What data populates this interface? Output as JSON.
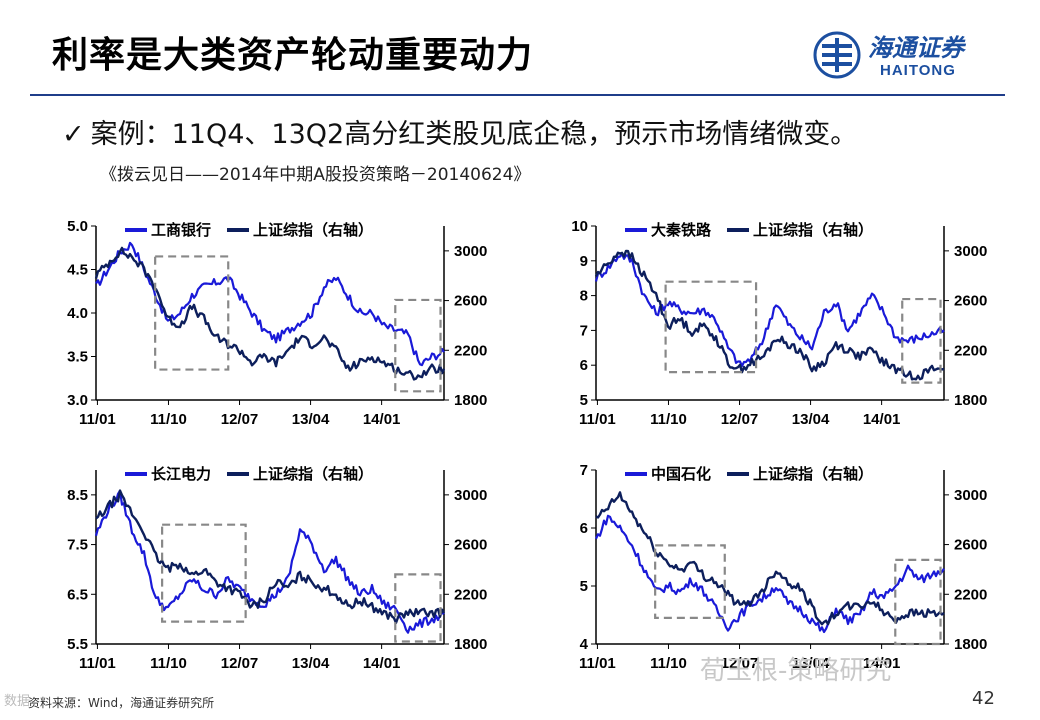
{
  "slide": {
    "title": "利率是大类资产轮动重要动力",
    "case_text": "案例：11Q4、13Q2高分红类股见底企稳，预示市场情绪微变。",
    "case_bullet": "✓",
    "source_text": "《拨云见日——2014年中期A股投资策略－20140624》",
    "footnote": "资料来源：Wind，海通证券研究所",
    "page_number": "42",
    "watermark": "荀玉根-策略研究",
    "watermark_left": "数据",
    "logo_cn": "海通证券",
    "logo_en": "HAITONG",
    "colors": {
      "stock": "#1a1ad8",
      "index": "#0d1f5c",
      "rule": "#1f3d8a",
      "box": "#888888"
    }
  },
  "chart_data": [
    {
      "type": "line",
      "title": "",
      "x_ticks": [
        "11/01",
        "11/10",
        "12/07",
        "13/04",
        "14/01"
      ],
      "y_left_ticks": [
        "5.0",
        "4.5",
        "4.0",
        "3.5",
        "3.0"
      ],
      "y_left_range": [
        3.0,
        5.0
      ],
      "y_right_ticks": [
        "3000",
        "2600",
        "2200",
        "1800"
      ],
      "y_right_range": [
        1800,
        3200
      ],
      "series": [
        {
          "name": "工商银行",
          "axis": "left",
          "values": [
            4.3,
            4.5,
            4.7,
            4.8,
            4.5,
            4.2,
            3.9,
            4.0,
            4.2,
            4.3,
            4.35,
            4.4,
            4.2,
            4.0,
            3.8,
            3.7,
            3.8,
            3.9,
            4.0,
            4.3,
            4.4,
            4.2,
            4.0,
            4.0,
            3.85,
            3.8,
            3.75,
            3.4,
            3.5,
            3.55
          ]
        },
        {
          "name": "上证综指（右轴）",
          "axis": "right",
          "values": [
            2800,
            2900,
            3000,
            2950,
            2850,
            2700,
            2450,
            2400,
            2550,
            2450,
            2300,
            2250,
            2200,
            2100,
            2150,
            2100,
            2200,
            2300,
            2250,
            2300,
            2200,
            2050,
            2100,
            2150,
            2100,
            2050,
            2000,
            2000,
            2050,
            2050
          ]
        }
      ],
      "highlight_boxes": [
        {
          "x_from": 0.17,
          "x_to": 0.38,
          "y_from": 3.35,
          "y_to": 4.65
        },
        {
          "x_from": 0.86,
          "x_to": 0.99,
          "y_from": 3.1,
          "y_to": 4.15
        }
      ]
    },
    {
      "type": "line",
      "title": "",
      "x_ticks": [
        "11/01",
        "11/10",
        "12/07",
        "13/04",
        "14/01"
      ],
      "y_left_ticks": [
        "10",
        "9",
        "8",
        "7",
        "6",
        "5"
      ],
      "y_left_range": [
        5,
        10
      ],
      "y_right_ticks": [
        "3000",
        "2600",
        "2200",
        "1800"
      ],
      "y_right_range": [
        1800,
        3200
      ],
      "series": [
        {
          "name": "大秦铁路",
          "axis": "left",
          "values": [
            8.5,
            8.8,
            9.2,
            9.0,
            8.0,
            7.5,
            7.8,
            7.6,
            7.5,
            7.6,
            7.3,
            6.5,
            6.0,
            6.2,
            6.8,
            7.8,
            7.2,
            6.8,
            6.5,
            7.5,
            7.8,
            7.0,
            7.5,
            8.0,
            7.5,
            6.8,
            6.7,
            6.8,
            6.9,
            7.0
          ]
        },
        {
          "name": "上证综指（右轴）",
          "axis": "right",
          "values": [
            2800,
            2900,
            3000,
            2950,
            2800,
            2650,
            2400,
            2450,
            2350,
            2400,
            2300,
            2100,
            2050,
            2100,
            2150,
            2300,
            2250,
            2200,
            2050,
            2100,
            2250,
            2200,
            2150,
            2200,
            2100,
            2050,
            2000,
            2000,
            2050,
            2050
          ]
        }
      ],
      "highlight_boxes": [
        {
          "x_from": 0.2,
          "x_to": 0.46,
          "y_from": 5.8,
          "y_to": 8.4
        },
        {
          "x_from": 0.88,
          "x_to": 0.99,
          "y_from": 5.5,
          "y_to": 7.9
        }
      ]
    },
    {
      "type": "line",
      "title": "",
      "x_ticks": [
        "11/01",
        "11/10",
        "12/07",
        "13/04",
        "14/01"
      ],
      "y_left_ticks": [
        "8.5",
        "7.5",
        "6.5",
        "5.5"
      ],
      "y_left_range": [
        5.5,
        9.0
      ],
      "y_right_ticks": [
        "3000",
        "2600",
        "2200",
        "1800"
      ],
      "y_right_range": [
        1800,
        3200
      ],
      "series": [
        {
          "name": "长江电力",
          "axis": "left",
          "values": [
            7.7,
            8.2,
            8.5,
            7.8,
            7.3,
            6.4,
            6.2,
            6.5,
            6.8,
            6.6,
            6.5,
            6.8,
            6.6,
            6.4,
            6.3,
            6.5,
            6.8,
            7.8,
            7.5,
            7.0,
            7.2,
            6.8,
            6.5,
            6.6,
            6.3,
            6.2,
            5.8,
            5.9,
            6.0,
            6.1
          ]
        },
        {
          "name": "上证综指（右轴）",
          "axis": "right",
          "values": [
            2800,
            2900,
            3000,
            2850,
            2700,
            2500,
            2400,
            2450,
            2350,
            2400,
            2300,
            2250,
            2200,
            2100,
            2150,
            2300,
            2250,
            2350,
            2300,
            2250,
            2200,
            2100,
            2150,
            2100,
            2050,
            2000,
            2050,
            2050,
            2050,
            2050
          ]
        }
      ],
      "highlight_boxes": [
        {
          "x_from": 0.19,
          "x_to": 0.43,
          "y_from": 5.95,
          "y_to": 7.9
        },
        {
          "x_from": 0.86,
          "x_to": 0.99,
          "y_from": 5.55,
          "y_to": 6.9
        }
      ]
    },
    {
      "type": "line",
      "title": "",
      "x_ticks": [
        "11/01",
        "11/10",
        "12/07",
        "13/04",
        "14/01"
      ],
      "y_left_ticks": [
        "7",
        "6",
        "5",
        "4"
      ],
      "y_left_range": [
        4,
        7
      ],
      "y_right_ticks": [
        "3000",
        "2600",
        "2200",
        "1800"
      ],
      "y_right_range": [
        1800,
        3200
      ],
      "series": [
        {
          "name": "中国石化",
          "axis": "left",
          "values": [
            5.8,
            6.2,
            6.0,
            5.7,
            5.3,
            4.9,
            5.0,
            4.9,
            5.1,
            4.9,
            4.6,
            4.3,
            4.5,
            4.7,
            4.8,
            5.0,
            4.7,
            4.6,
            4.4,
            4.2,
            4.6,
            4.4,
            4.5,
            4.9,
            4.8,
            5.0,
            5.3,
            5.1,
            5.2,
            5.3
          ]
        },
        {
          "name": "上证综指（右轴）",
          "axis": "right",
          "values": [
            2800,
            2900,
            3000,
            2850,
            2700,
            2550,
            2450,
            2400,
            2450,
            2350,
            2300,
            2200,
            2100,
            2150,
            2250,
            2400,
            2300,
            2250,
            2100,
            1950,
            2050,
            2100,
            2100,
            2150,
            2050,
            2000,
            2050,
            2050,
            2050,
            2050
          ]
        }
      ],
      "highlight_boxes": [
        {
          "x_from": 0.17,
          "x_to": 0.37,
          "y_from": 4.45,
          "y_to": 5.7
        },
        {
          "x_from": 0.86,
          "x_to": 0.99,
          "y_from": 4.0,
          "y_to": 5.45
        }
      ]
    }
  ]
}
